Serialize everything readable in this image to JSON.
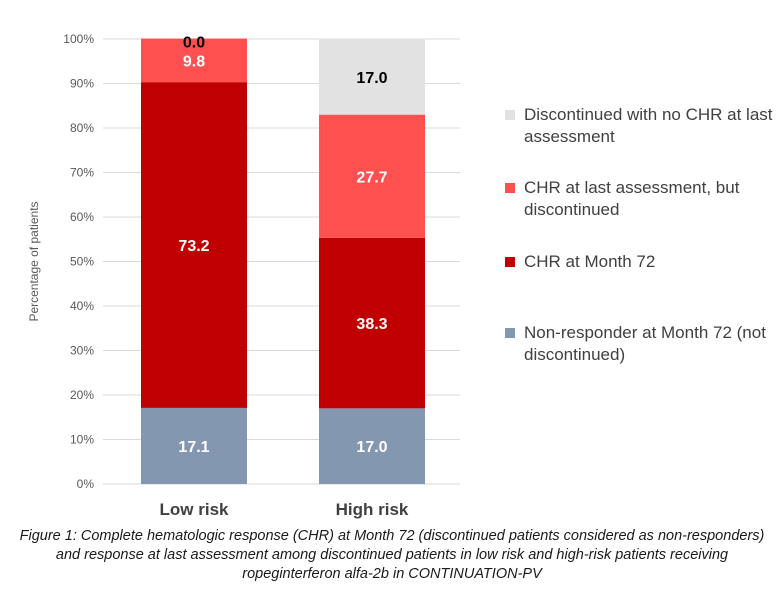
{
  "chart_data": {
    "type": "bar",
    "stacked": true,
    "categories": [
      "Low risk",
      "High risk"
    ],
    "series": [
      {
        "name": "Non-responder at Month 72 (not discontinued)",
        "color": "#8497b0",
        "values": [
          17.1,
          17.0
        ]
      },
      {
        "name": "CHR at Month 72",
        "color": "#c00000",
        "values": [
          73.2,
          38.3
        ]
      },
      {
        "name": "CHR at last assessment, but discontinued",
        "color": "#ff5050",
        "values": [
          9.8,
          27.7
        ]
      },
      {
        "name": "Discontinued with no CHR at last assessment",
        "color": "#e2e2e2",
        "values": [
          0.0,
          17.0
        ]
      }
    ],
    "data_label_text": [
      [
        "17.1",
        "17.0"
      ],
      [
        "73.2",
        "38.3"
      ],
      [
        "9.8",
        "27.7"
      ],
      [
        "0.0",
        "17.0"
      ]
    ],
    "data_label_colors": [
      "#ffffff",
      "#ffffff",
      "#ffffff",
      "#000000"
    ],
    "ylabel": "Percentage of patients",
    "xlabel": "",
    "ylim": [
      0,
      100
    ],
    "yticks": [
      "0%",
      "10%",
      "20%",
      "30%",
      "40%",
      "50%",
      "60%",
      "70%",
      "80%",
      "90%",
      "100%"
    ],
    "grid": true,
    "legend_position": "right",
    "legend": [
      {
        "label": "Discontinued with no CHR at last assessment",
        "color": "#e2e2e2"
      },
      {
        "label": "CHR at last assessment, but discontinued",
        "color": "#ff5050"
      },
      {
        "label": "CHR at Month 72",
        "color": "#c00000"
      },
      {
        "label": "Non-responder at Month 72 (not discontinued)",
        "color": "#8497b0"
      }
    ]
  },
  "caption": "Figure 1: Complete hematologic response (CHR) at Month 72 (discontinued patients considered as non-responders) and response at last assessment among discontinued patients in low risk and high-risk patients receiving ropeginterferon alfa-2b in CONTINUATION-PV"
}
